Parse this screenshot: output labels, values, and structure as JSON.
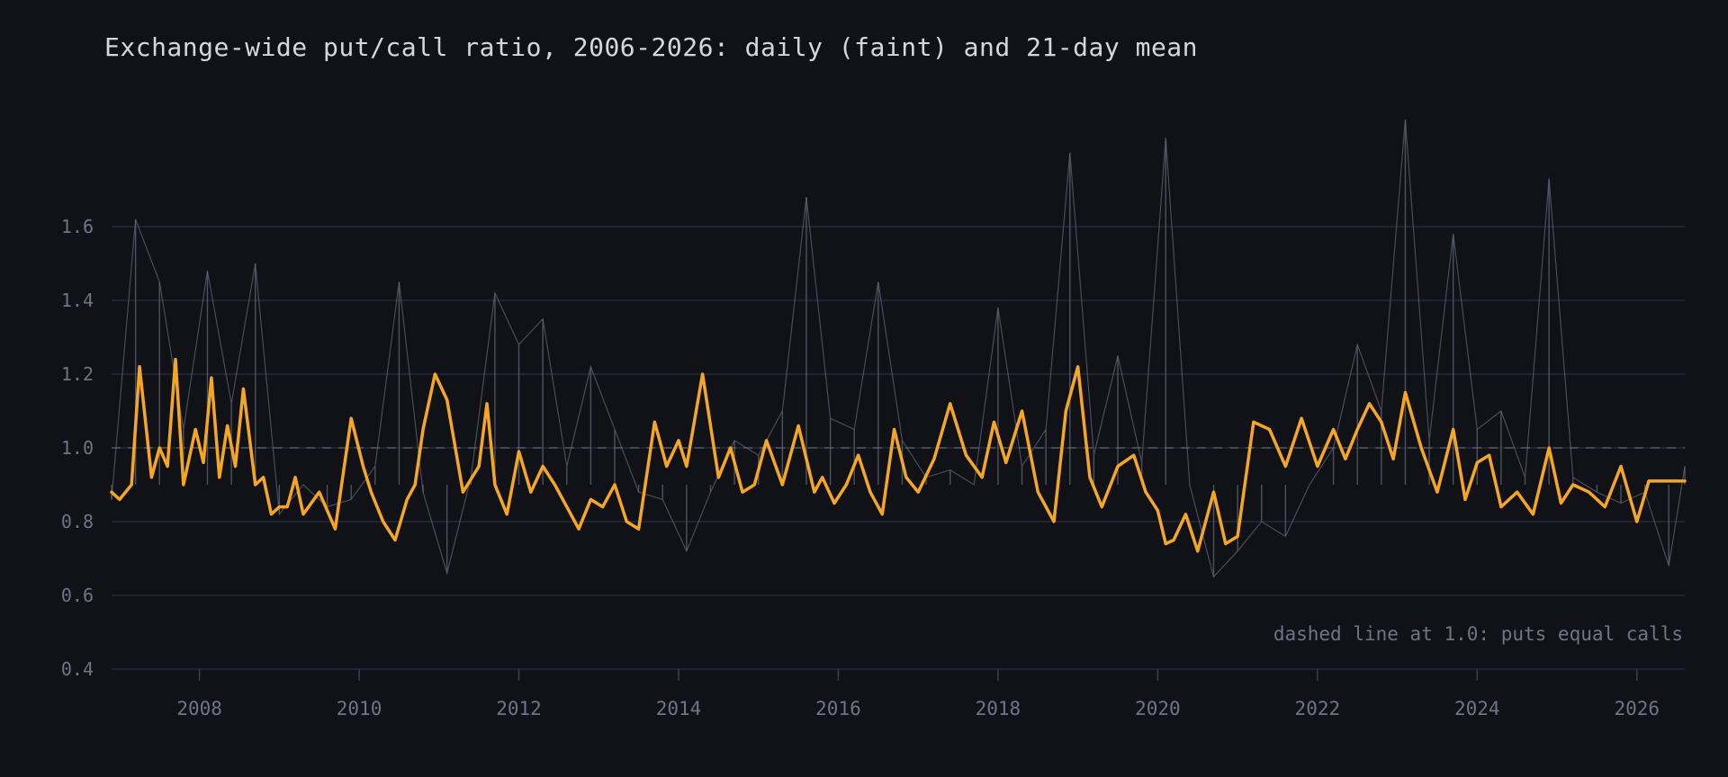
{
  "chart_data": {
    "type": "line",
    "title": "Exchange-wide put/call ratio, 2006-2026: daily (faint) and 21-day mean",
    "xlabel": "",
    "ylabel": "",
    "xlim": [
      2006.9,
      2026.6
    ],
    "ylim": [
      0.4,
      1.8
    ],
    "y_ticks": [
      0.4,
      0.6,
      0.8,
      1.0,
      1.2,
      1.4,
      1.6
    ],
    "y_tick_labels": [
      "0.4",
      "0.6",
      "0.8",
      "1.0",
      "1.2",
      "1.4",
      "1.6"
    ],
    "x_ticks": [
      2008,
      2010,
      2012,
      2014,
      2016,
      2018,
      2020,
      2022,
      2024,
      2026
    ],
    "x_tick_labels": [
      "2008",
      "2010",
      "2012",
      "2014",
      "2016",
      "2018",
      "2020",
      "2022",
      "2024",
      "2026"
    ],
    "grid": true,
    "reference_line": {
      "y": 1.0,
      "style": "dashed"
    },
    "annotation": "dashed line at 1.0: puts equal calls",
    "colors": {
      "background": "#111217",
      "daily": "#5c6270",
      "mean": "#f5a623",
      "grid": "#262a38",
      "text": "#6e7585"
    },
    "series": [
      {
        "style": "faint",
        "x": [
          2006.9,
          2007.2,
          2007.5,
          2007.8,
          2008.1,
          2008.4,
          2008.7,
          2009.0,
          2009.3,
          2009.6,
          2009.9,
          2010.2,
          2010.5,
          2010.8,
          2011.1,
          2011.4,
          2011.7,
          2012.0,
          2012.3,
          2012.6,
          2012.9,
          2013.2,
          2013.5,
          2013.8,
          2014.1,
          2014.4,
          2014.7,
          2015.0,
          2015.3,
          2015.6,
          2015.9,
          2016.2,
          2016.5,
          2016.8,
          2017.1,
          2017.4,
          2017.7,
          2018.0,
          2018.3,
          2018.6,
          2018.9,
          2019.2,
          2019.5,
          2019.8,
          2020.1,
          2020.4,
          2020.7,
          2021.0,
          2021.3,
          2021.6,
          2021.9,
          2022.2,
          2022.5,
          2022.8,
          2023.1,
          2023.4,
          2023.7,
          2024.0,
          2024.3,
          2024.6,
          2024.9,
          2025.2,
          2025.5,
          2025.8,
          2026.1,
          2026.4,
          2026.6
        ],
        "y": [
          0.86,
          1.62,
          1.45,
          1.05,
          1.48,
          1.12,
          1.5,
          0.82,
          0.9,
          0.84,
          0.86,
          0.95,
          1.45,
          0.88,
          0.66,
          0.92,
          1.42,
          1.28,
          1.35,
          0.95,
          1.22,
          1.05,
          0.88,
          0.86,
          0.72,
          0.88,
          1.02,
          0.98,
          1.1,
          1.68,
          1.08,
          1.05,
          1.45,
          1.02,
          0.92,
          0.94,
          0.9,
          1.38,
          0.95,
          1.05,
          1.8,
          0.98,
          1.25,
          0.96,
          1.84,
          0.9,
          0.65,
          0.72,
          0.8,
          0.76,
          0.9,
          1.0,
          1.28,
          1.1,
          1.89,
          1.02,
          1.58,
          1.05,
          1.1,
          0.92,
          1.73,
          0.92,
          0.88,
          0.85,
          0.88,
          0.68,
          0.95
        ]
      },
      {
        "style": "bold",
        "x": [
          2006.9,
          2007.0,
          2007.15,
          2007.25,
          2007.4,
          2007.5,
          2007.6,
          2007.7,
          2007.8,
          2007.95,
          2008.05,
          2008.15,
          2008.25,
          2008.35,
          2008.45,
          2008.55,
          2008.7,
          2008.8,
          2008.9,
          2009.0,
          2009.1,
          2009.2,
          2009.3,
          2009.5,
          2009.7,
          2009.9,
          2010.05,
          2010.15,
          2010.3,
          2010.45,
          2010.6,
          2010.7,
          2010.8,
          2010.95,
          2011.1,
          2011.3,
          2011.5,
          2011.6,
          2011.7,
          2011.85,
          2012.0,
          2012.15,
          2012.3,
          2012.45,
          2012.6,
          2012.75,
          2012.9,
          2013.05,
          2013.2,
          2013.35,
          2013.5,
          2013.7,
          2013.85,
          2014.0,
          2014.1,
          2014.3,
          2014.5,
          2014.65,
          2014.8,
          2014.95,
          2015.1,
          2015.3,
          2015.5,
          2015.7,
          2015.8,
          2015.95,
          2016.1,
          2016.25,
          2016.4,
          2016.55,
          2016.7,
          2016.85,
          2017.0,
          2017.2,
          2017.4,
          2017.6,
          2017.8,
          2017.95,
          2018.1,
          2018.3,
          2018.5,
          2018.7,
          2018.85,
          2019.0,
          2019.15,
          2019.3,
          2019.5,
          2019.7,
          2019.85,
          2020.0,
          2020.1,
          2020.2,
          2020.35,
          2020.5,
          2020.7,
          2020.85,
          2021.0,
          2021.2,
          2021.4,
          2021.6,
          2021.8,
          2022.0,
          2022.2,
          2022.35,
          2022.5,
          2022.65,
          2022.8,
          2022.95,
          2023.1,
          2023.3,
          2023.5,
          2023.7,
          2023.85,
          2024.0,
          2024.15,
          2024.3,
          2024.5,
          2024.7,
          2024.9,
          2025.05,
          2025.2,
          2025.4,
          2025.6,
          2025.8,
          2026.0,
          2026.15,
          2026.3,
          2026.45,
          2026.6
        ],
        "y": [
          0.88,
          0.86,
          0.9,
          1.22,
          0.92,
          1.0,
          0.95,
          1.24,
          0.9,
          1.05,
          0.96,
          1.19,
          0.92,
          1.06,
          0.95,
          1.16,
          0.9,
          0.92,
          0.82,
          0.84,
          0.84,
          0.92,
          0.82,
          0.88,
          0.78,
          1.08,
          0.95,
          0.88,
          0.8,
          0.75,
          0.86,
          0.9,
          1.05,
          1.2,
          1.13,
          0.88,
          0.95,
          1.12,
          0.9,
          0.82,
          0.99,
          0.88,
          0.95,
          0.9,
          0.84,
          0.78,
          0.86,
          0.84,
          0.9,
          0.8,
          0.78,
          1.07,
          0.95,
          1.02,
          0.95,
          1.2,
          0.92,
          1.0,
          0.88,
          0.9,
          1.02,
          0.9,
          1.06,
          0.88,
          0.92,
          0.85,
          0.9,
          0.98,
          0.88,
          0.82,
          1.05,
          0.92,
          0.88,
          0.97,
          1.12,
          0.98,
          0.92,
          1.07,
          0.96,
          1.1,
          0.88,
          0.8,
          1.1,
          1.22,
          0.92,
          0.84,
          0.95,
          0.98,
          0.88,
          0.83,
          0.74,
          0.75,
          0.82,
          0.72,
          0.88,
          0.74,
          0.76,
          1.07,
          1.05,
          0.95,
          1.08,
          0.95,
          1.05,
          0.97,
          1.05,
          1.12,
          1.07,
          0.97,
          1.15,
          1.0,
          0.88,
          1.05,
          0.86,
          0.96,
          0.98,
          0.84,
          0.88,
          0.82,
          1.0,
          0.85,
          0.9,
          0.88,
          0.84,
          0.95,
          0.8,
          0.91,
          0.91,
          0.91,
          0.91
        ],
        "name": ""
      }
    ]
  }
}
